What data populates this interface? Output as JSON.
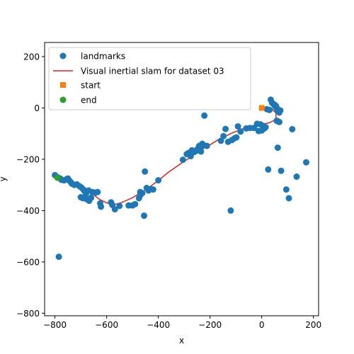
{
  "chart_data": {
    "type": "scatter",
    "title": "",
    "xlabel": "x",
    "ylabel": "y",
    "xlim": [
      -840,
      220
    ],
    "ylim": [
      -810,
      255
    ],
    "xticks": [
      -800,
      -600,
      -400,
      -200,
      0,
      200
    ],
    "yticks": [
      200,
      0,
      -200,
      -400,
      -600,
      -800
    ],
    "xtick_labels": [
      "−800",
      "−600",
      "−400",
      "−200",
      "0",
      "200"
    ],
    "ytick_labels": [
      "200",
      "0",
      "−200",
      "−400",
      "−600",
      "−800"
    ],
    "grid": false,
    "legend_position": "top-left",
    "legend": [
      {
        "label": "landmarks",
        "marker": "circle",
        "color": "#1f77b4"
      },
      {
        "label": "Visual inertial slam for dataset 03",
        "marker": "line",
        "color": "#d62728"
      },
      {
        "label": "start",
        "marker": "square",
        "color": "#ff7f0e"
      },
      {
        "label": "end",
        "marker": "circle",
        "color": "#2ca02c"
      }
    ],
    "series": [
      {
        "name": "landmarks",
        "type": "scatter",
        "color": "#1f77b4",
        "points": [
          [
            -800,
            -262
          ],
          [
            -790,
            -270
          ],
          [
            -780,
            -275
          ],
          [
            -775,
            -280
          ],
          [
            -765,
            -282
          ],
          [
            -755,
            -278
          ],
          [
            -750,
            -275
          ],
          [
            -745,
            -283
          ],
          [
            -738,
            -290
          ],
          [
            -735,
            -295
          ],
          [
            -725,
            -300
          ],
          [
            -715,
            -298
          ],
          [
            -705,
            -305
          ],
          [
            -698,
            -310
          ],
          [
            -690,
            -318
          ],
          [
            -685,
            -325
          ],
          [
            -680,
            -335
          ],
          [
            -700,
            -348
          ],
          [
            -692,
            -352
          ],
          [
            -678,
            -355
          ],
          [
            -668,
            -362
          ],
          [
            -660,
            -350
          ],
          [
            -670,
            -322
          ],
          [
            -655,
            -328
          ],
          [
            -643,
            -330
          ],
          [
            -635,
            -328
          ],
          [
            -625,
            -372
          ],
          [
            -622,
            -385
          ],
          [
            -583,
            -368
          ],
          [
            -578,
            -378
          ],
          [
            -568,
            -395
          ],
          [
            -550,
            -382
          ],
          [
            -515,
            -380
          ],
          [
            -500,
            -380
          ],
          [
            -490,
            -375
          ],
          [
            -475,
            -352
          ],
          [
            -470,
            -340
          ],
          [
            -470,
            -328
          ],
          [
            -462,
            -332
          ],
          [
            -455,
            -420
          ],
          [
            -452,
            -248
          ],
          [
            -445,
            -312
          ],
          [
            -438,
            -322
          ],
          [
            -430,
            -316
          ],
          [
            -420,
            -318
          ],
          [
            -400,
            -282
          ],
          [
            -305,
            -202
          ],
          [
            -290,
            -180
          ],
          [
            -282,
            -175
          ],
          [
            -275,
            -188
          ],
          [
            -270,
            -165
          ],
          [
            -262,
            -172
          ],
          [
            -255,
            -168
          ],
          [
            -248,
            -160
          ],
          [
            -242,
            -148
          ],
          [
            -238,
            -155
          ],
          [
            -235,
            -170
          ],
          [
            -230,
            -140
          ],
          [
            -225,
            -145
          ],
          [
            -222,
            -30
          ],
          [
            -212,
            -148
          ],
          [
            -158,
            -128
          ],
          [
            -148,
            -110
          ],
          [
            -140,
            -82
          ],
          [
            -130,
            -132
          ],
          [
            -120,
            -400
          ],
          [
            -115,
            -125
          ],
          [
            -105,
            -118
          ],
          [
            -98,
            -115
          ],
          [
            -92,
            -72
          ],
          [
            -82,
            -92
          ],
          [
            -60,
            -80
          ],
          [
            -45,
            -78
          ],
          [
            -30,
            -78
          ],
          [
            -18,
            -62
          ],
          [
            -12,
            -90
          ],
          [
            -5,
            -64
          ],
          [
            0,
            -88
          ],
          [
            5,
            -70
          ],
          [
            10,
            -80
          ],
          [
            15,
            -75
          ],
          [
            20,
            -5
          ],
          [
            25,
            -240
          ],
          [
            30,
            -8
          ],
          [
            35,
            32
          ],
          [
            40,
            20
          ],
          [
            45,
            15
          ],
          [
            50,
            12
          ],
          [
            52,
            5
          ],
          [
            55,
            8
          ],
          [
            58,
            0
          ],
          [
            60,
            -5
          ],
          [
            62,
            -12
          ],
          [
            65,
            -15
          ],
          [
            68,
            -18
          ],
          [
            72,
            -10
          ],
          [
            58,
            -50
          ],
          [
            62,
            -52
          ],
          [
            68,
            -55
          ],
          [
            62,
            -155
          ],
          [
            75,
            -245
          ],
          [
            95,
            -318
          ],
          [
            105,
            -352
          ],
          [
            118,
            -83
          ],
          [
            135,
            -268
          ],
          [
            172,
            -212
          ],
          [
            -785,
            -580
          ]
        ]
      },
      {
        "name": "Visual inertial slam for dataset 03",
        "type": "line",
        "color": "#d62728",
        "points": [
          [
            0,
            0
          ],
          [
            40,
            -5
          ],
          [
            55,
            -20
          ],
          [
            55,
            -45
          ],
          [
            30,
            -58
          ],
          [
            -20,
            -68
          ],
          [
            -70,
            -80
          ],
          [
            -120,
            -100
          ],
          [
            -170,
            -125
          ],
          [
            -210,
            -150
          ],
          [
            -245,
            -168
          ],
          [
            -280,
            -195
          ],
          [
            -320,
            -222
          ],
          [
            -360,
            -250
          ],
          [
            -400,
            -283
          ],
          [
            -450,
            -320
          ],
          [
            -500,
            -350
          ],
          [
            -540,
            -368
          ],
          [
            -570,
            -377
          ],
          [
            -600,
            -370
          ],
          [
            -630,
            -355
          ],
          [
            -660,
            -330
          ],
          [
            -690,
            -310
          ],
          [
            -720,
            -295
          ],
          [
            -750,
            -283
          ],
          [
            -770,
            -278
          ],
          [
            -790,
            -272
          ]
        ]
      },
      {
        "name": "start",
        "type": "scatter",
        "color": "#ff7f0e",
        "points": [
          [
            0,
            0
          ]
        ]
      },
      {
        "name": "end",
        "type": "scatter",
        "color": "#2ca02c",
        "points": [
          [
            -790,
            -272
          ]
        ]
      }
    ]
  }
}
